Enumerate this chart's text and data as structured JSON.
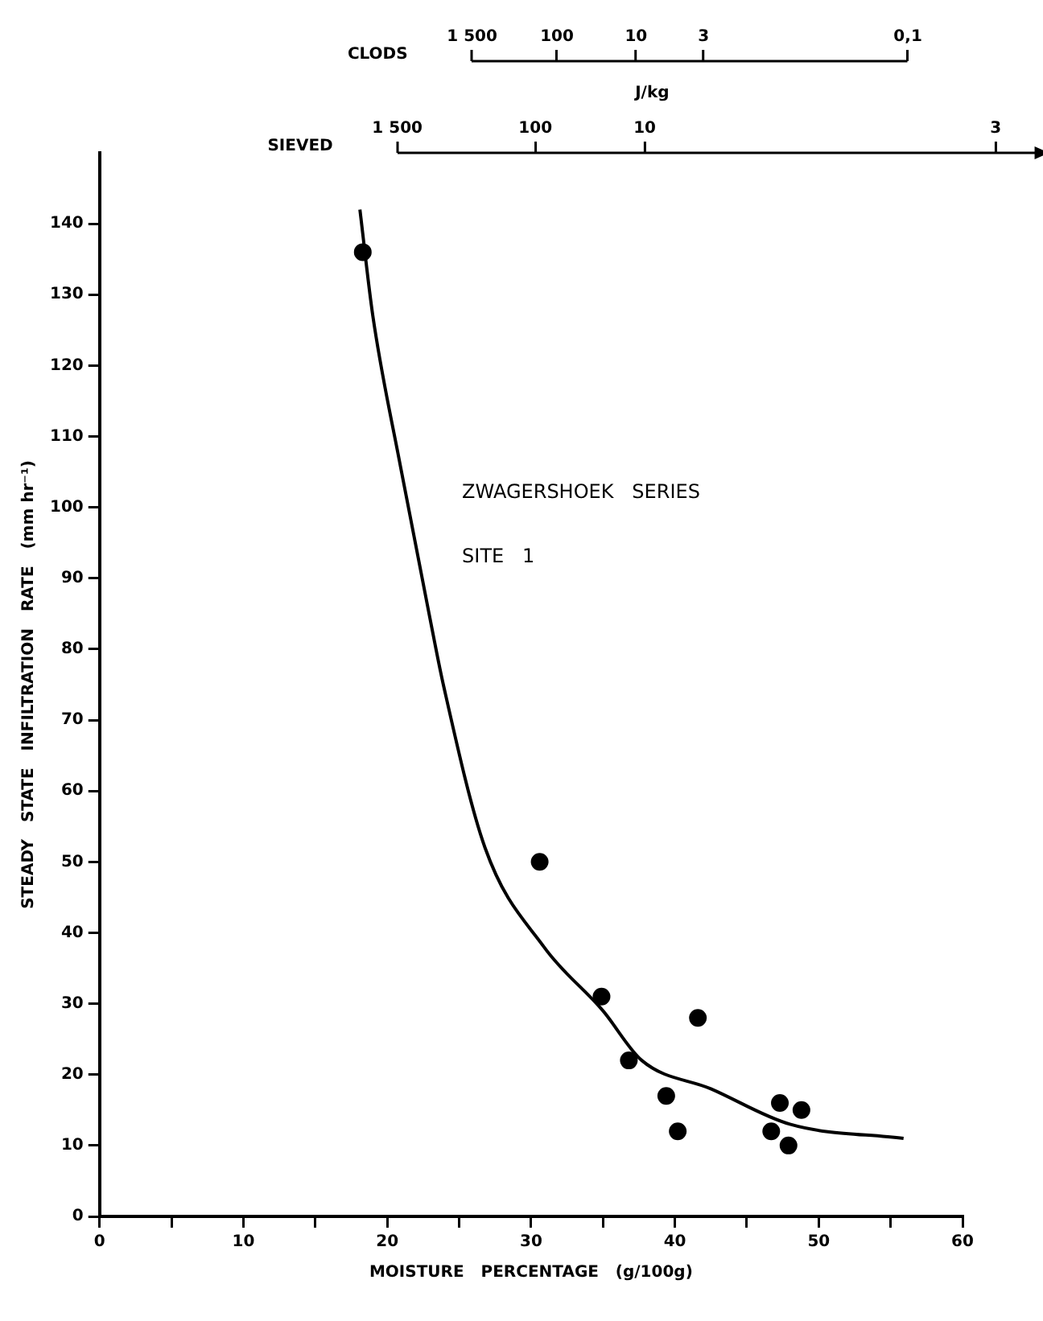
{
  "chart_data": {
    "type": "scatter",
    "xlabel": "MOISTURE   PERCENTAGE   (g/100g)",
    "ylabel": "STEADY   STATE   INFILTRATION   RATE   (mm hr⁻¹)",
    "annotations": [
      "ZWAGERSHOEK   SERIES",
      "SITE   1",
      "CLODS",
      "1 500",
      "100",
      "10",
      "3",
      "0,1",
      "J/kg",
      "SIEVED",
      "1 500",
      "100",
      "10",
      "3"
    ],
    "xlim": [
      0,
      60
    ],
    "xticks": [
      0,
      {
        "value": 5,
        "label": null
      },
      10,
      {
        "value": 15,
        "label": null
      },
      20,
      {
        "value": 25,
        "label": null
      },
      30,
      {
        "value": 35,
        "label": null
      },
      40,
      {
        "value": 45,
        "label": null
      },
      50,
      {
        "value": 55,
        "label": null
      },
      60
    ],
    "ylim": [
      0,
      150
    ],
    "yticks": [
      0,
      10,
      20,
      30,
      40,
      50,
      60,
      70,
      80,
      90,
      100,
      110,
      120,
      130,
      140
    ],
    "grid": false,
    "legend": false,
    "series": [
      {
        "type": "scatter",
        "color": "#000000",
        "marker": "circle",
        "x": [
          18.3,
          30.6,
          34.9,
          36.8,
          41.6,
          39.4,
          40.2,
          47.3,
          48.8,
          46.7,
          47.9
        ],
        "values": [
          136,
          50,
          31,
          22,
          28,
          17,
          12,
          16,
          15,
          12,
          10
        ]
      },
      {
        "type": "line",
        "color": "#000000",
        "marker": "none",
        "line_style": "solid",
        "x": [
          18.1,
          19,
          20.9,
          23.1,
          23.9,
          26.8,
          30.9,
          35,
          37.7,
          42.5,
          48,
          55.9
        ],
        "values": [
          142,
          127,
          106,
          83,
          75,
          52,
          38,
          29,
          22,
          18,
          13,
          11
        ]
      }
    ]
  }
}
